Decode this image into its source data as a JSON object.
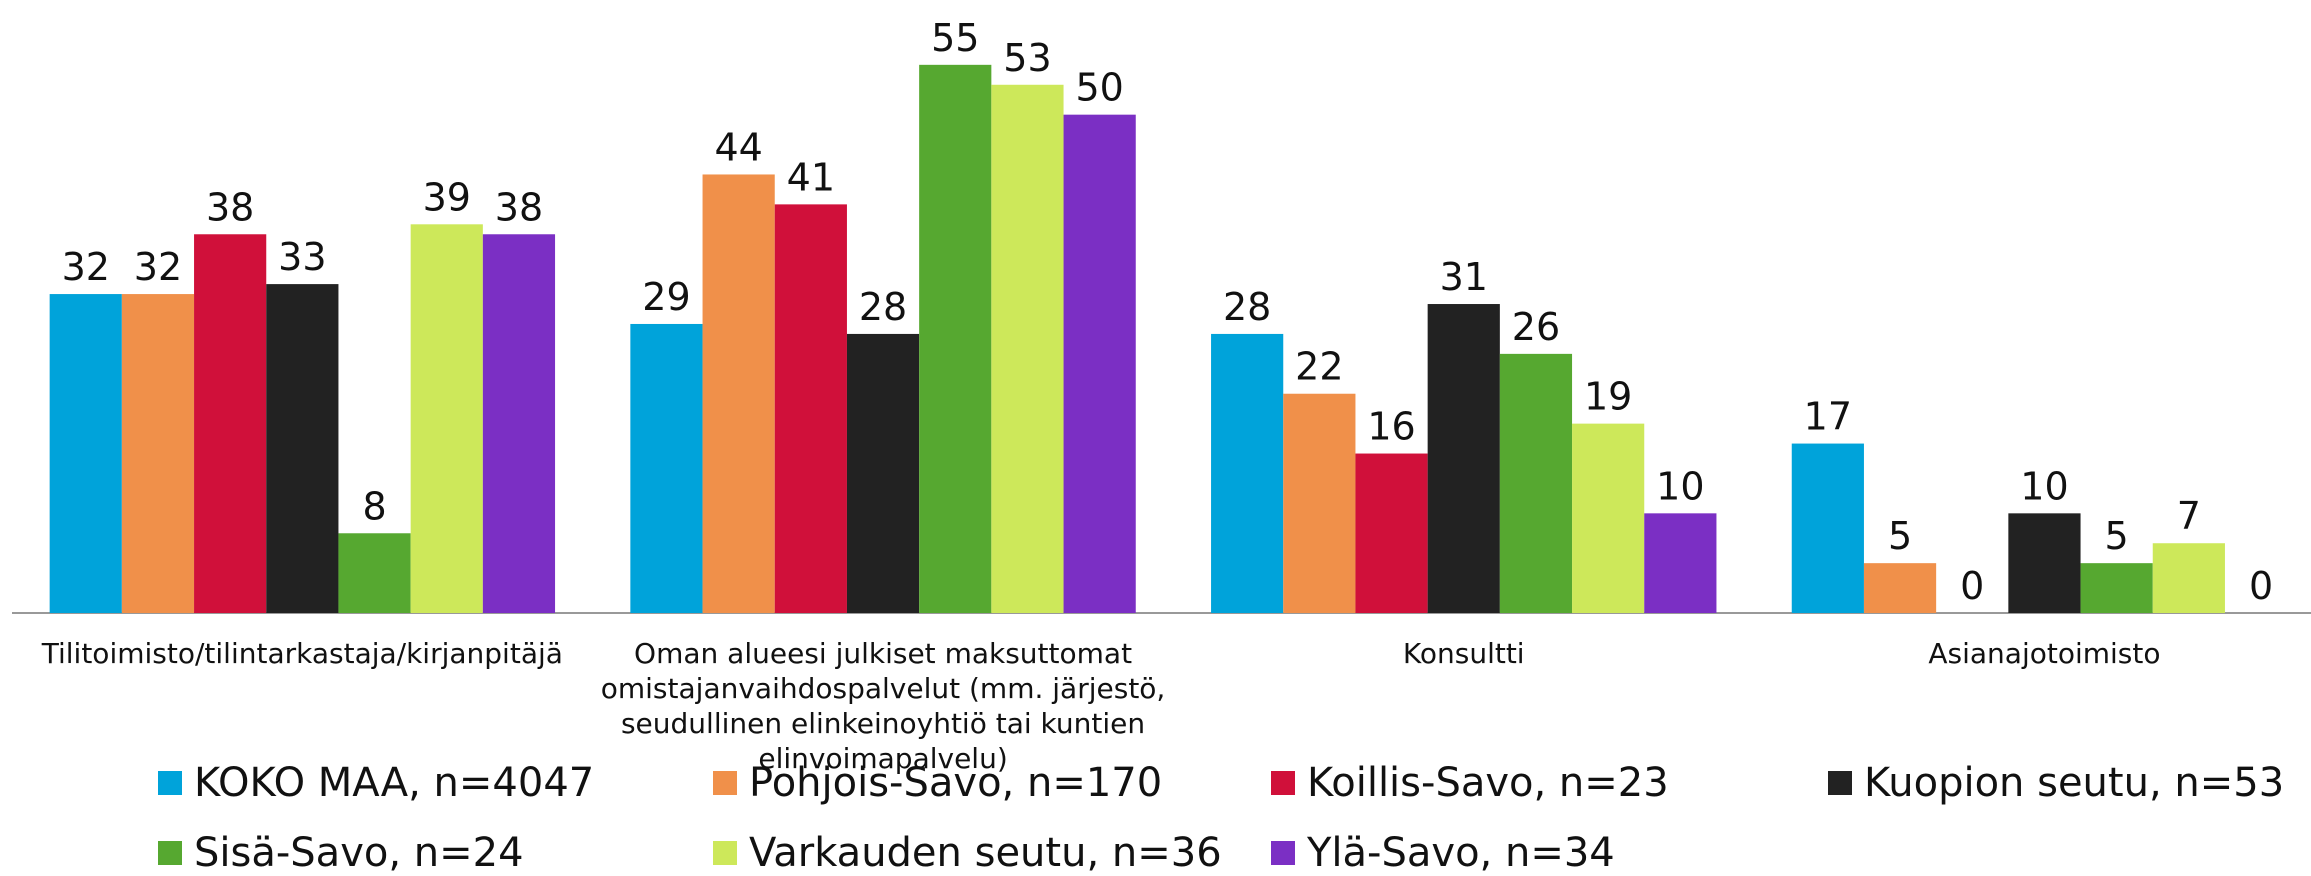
{
  "chart_data": {
    "type": "bar",
    "categories": [
      "Tilitoimisto/tilintarkastaja/kirjanpitäjä",
      "Oman alueesi julkiset maksuttomat omistajanvaihdospalvelut (mm. järjestö, seudullinen elinkeinoyhtiö tai kuntien elinvoimapalvelu)",
      "Konsultti",
      "Asianajotoimisto"
    ],
    "series": [
      {
        "name": "KOKO MAA, n=4047",
        "color": "#00a3da",
        "values": [
          32,
          29,
          28,
          17
        ]
      },
      {
        "name": "Pohjois-Savo, n=170",
        "color": "#f0904a",
        "values": [
          32,
          44,
          22,
          5
        ]
      },
      {
        "name": "Koillis-Savo, n=23",
        "color": "#d0103a",
        "values": [
          38,
          41,
          16,
          0
        ]
      },
      {
        "name": "Kuopion seutu, n=53",
        "color": "#222222",
        "values": [
          33,
          28,
          31,
          10
        ]
      },
      {
        "name": "Sisä-Savo, n=24",
        "color": "#56a830",
        "values": [
          8,
          55,
          26,
          5
        ]
      },
      {
        "name": "Varkauden seutu, n=36",
        "color": "#cde85a",
        "values": [
          39,
          53,
          19,
          7
        ]
      },
      {
        "name": "Ylä-Savo, n=34",
        "color": "#7b2fc4",
        "values": [
          38,
          50,
          10,
          0
        ]
      }
    ],
    "ylim": [
      0,
      60
    ]
  }
}
